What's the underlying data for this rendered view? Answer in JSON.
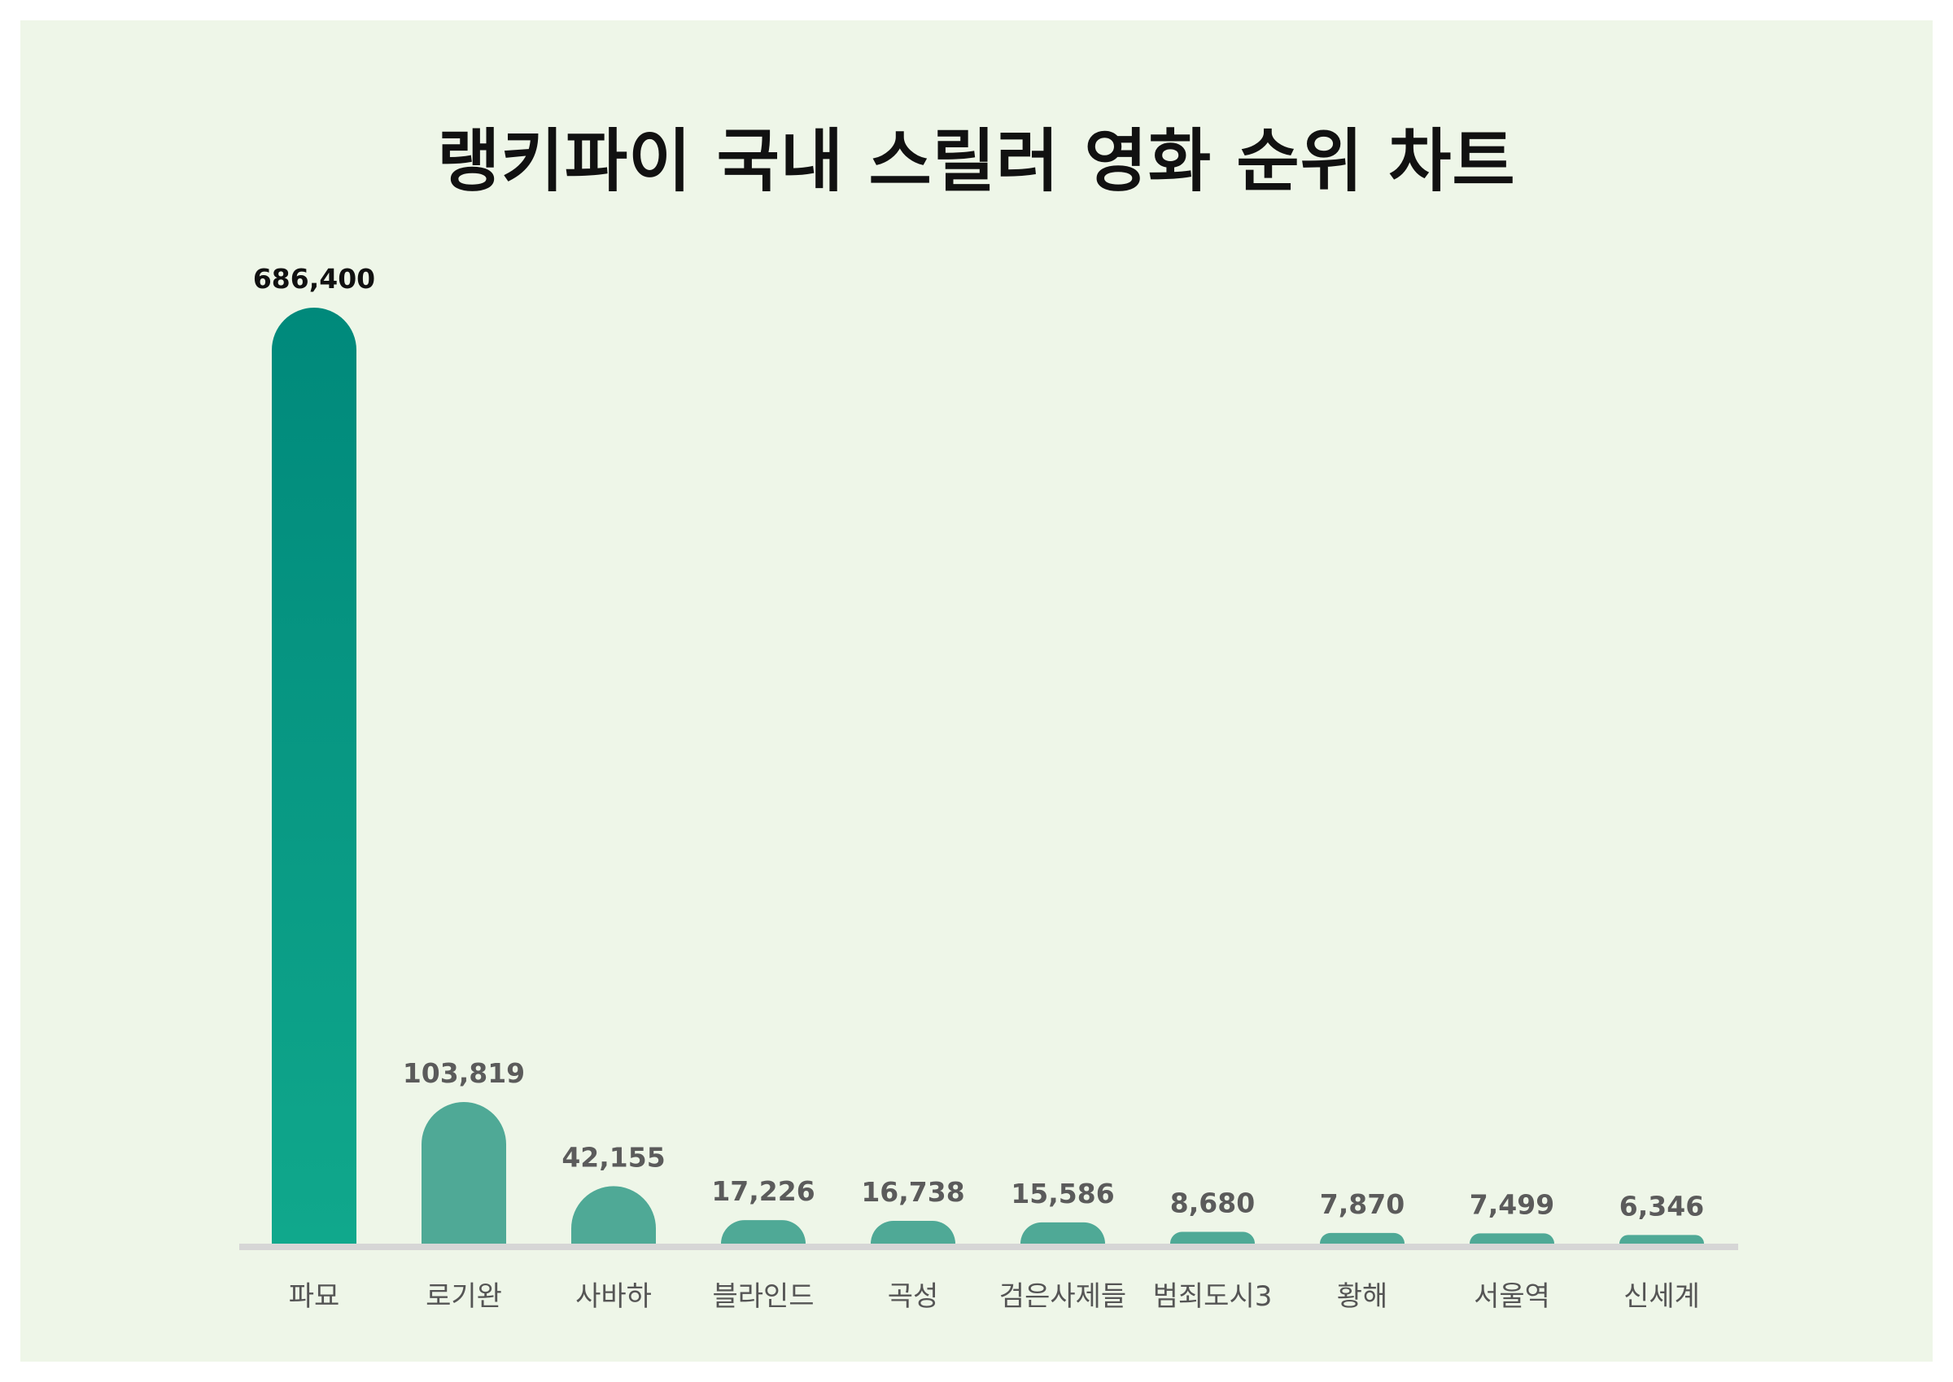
{
  "chart_data": {
    "type": "bar",
    "title": "랭키파이 국내 스릴러 영화 순위 차트",
    "xlabel": "",
    "ylabel": "",
    "categories": [
      "파묘",
      "로기완",
      "사바하",
      "블라인드",
      "곡성",
      "검은사제들",
      "범죄도시3",
      "황해",
      "서울역",
      "신세계"
    ],
    "values": [
      686400,
      103819,
      42155,
      17226,
      16738,
      15586,
      8680,
      7870,
      7499,
      6346
    ],
    "value_labels": [
      "686,400",
      "103,819",
      "42,155",
      "17,226",
      "16,738",
      "15,586",
      "8,680",
      "7,870",
      "7,499",
      "6,346"
    ],
    "grid": false,
    "legend": "none"
  },
  "colors": {
    "background": "#eef6e8",
    "top_bar_gradient_top": "#00897b",
    "top_bar_gradient_bottom": "#10a88c",
    "bar": "#4fa996",
    "baseline": "#d6d6d6"
  }
}
